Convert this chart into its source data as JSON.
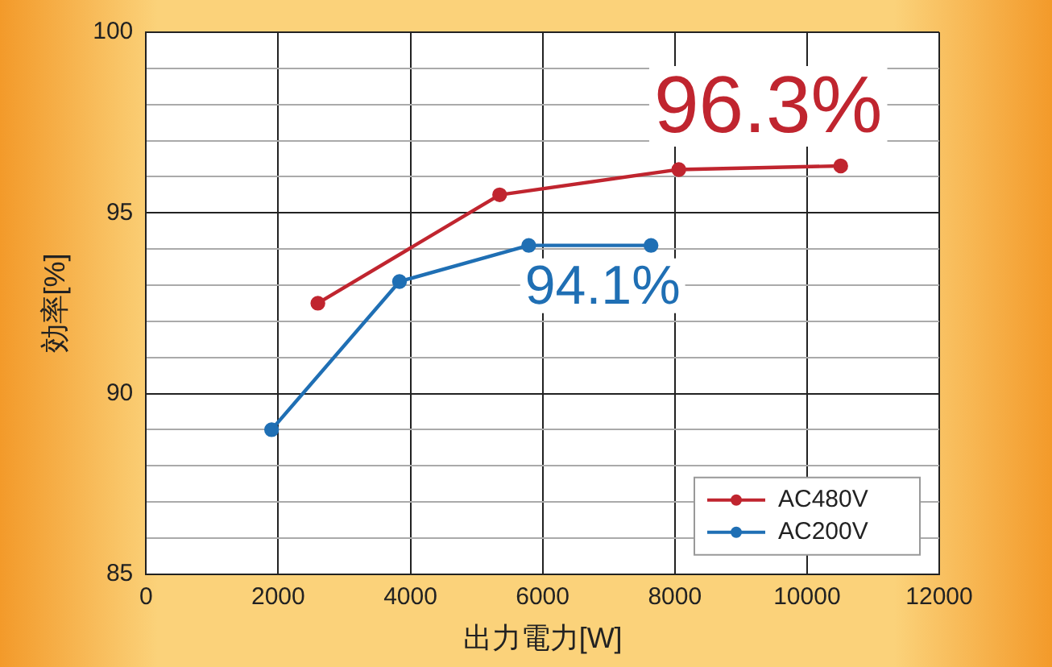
{
  "chart_data": {
    "type": "line",
    "xlabel": "出力電力[W]",
    "ylabel": "効率[%]",
    "xlim": [
      0,
      12000
    ],
    "xticks": [
      0,
      2000,
      4000,
      6000,
      8000,
      10000,
      12000
    ],
    "ylim": [
      85,
      100
    ],
    "yticks": [
      85,
      {
        "value": 86,
        "label": null
      },
      {
        "value": 87,
        "label": null
      },
      {
        "value": 88,
        "label": null
      },
      {
        "value": 89,
        "label": null
      },
      90,
      {
        "value": 91,
        "label": null
      },
      {
        "value": 92,
        "label": null
      },
      {
        "value": 93,
        "label": null
      },
      {
        "value": 94,
        "label": null
      },
      95,
      {
        "value": 96,
        "label": null
      },
      {
        "value": 97,
        "label": null
      },
      {
        "value": 98,
        "label": null
      },
      {
        "value": 99,
        "label": null
      },
      100
    ],
    "grid": true,
    "legend": "bottom right",
    "marker": "circle",
    "line_style": "solid",
    "series": [
      {
        "name": "AC480V",
        "color": "#c0252f",
        "x": [
          2600,
          5350,
          8060,
          10510
        ],
        "values": [
          92.5,
          95.5,
          96.2,
          96.3
        ]
      },
      {
        "name": "AC200V",
        "color": "#1f6fb4",
        "x": [
          1900,
          3835,
          5790,
          7640
        ],
        "values": [
          89.0,
          93.1,
          94.1,
          94.1
        ]
      }
    ],
    "annotations": [
      {
        "text": "96.3%",
        "x": 10510,
        "y": 96.3
      },
      {
        "text": "94.1%",
        "x": 7640,
        "y": 94.1
      }
    ]
  }
}
